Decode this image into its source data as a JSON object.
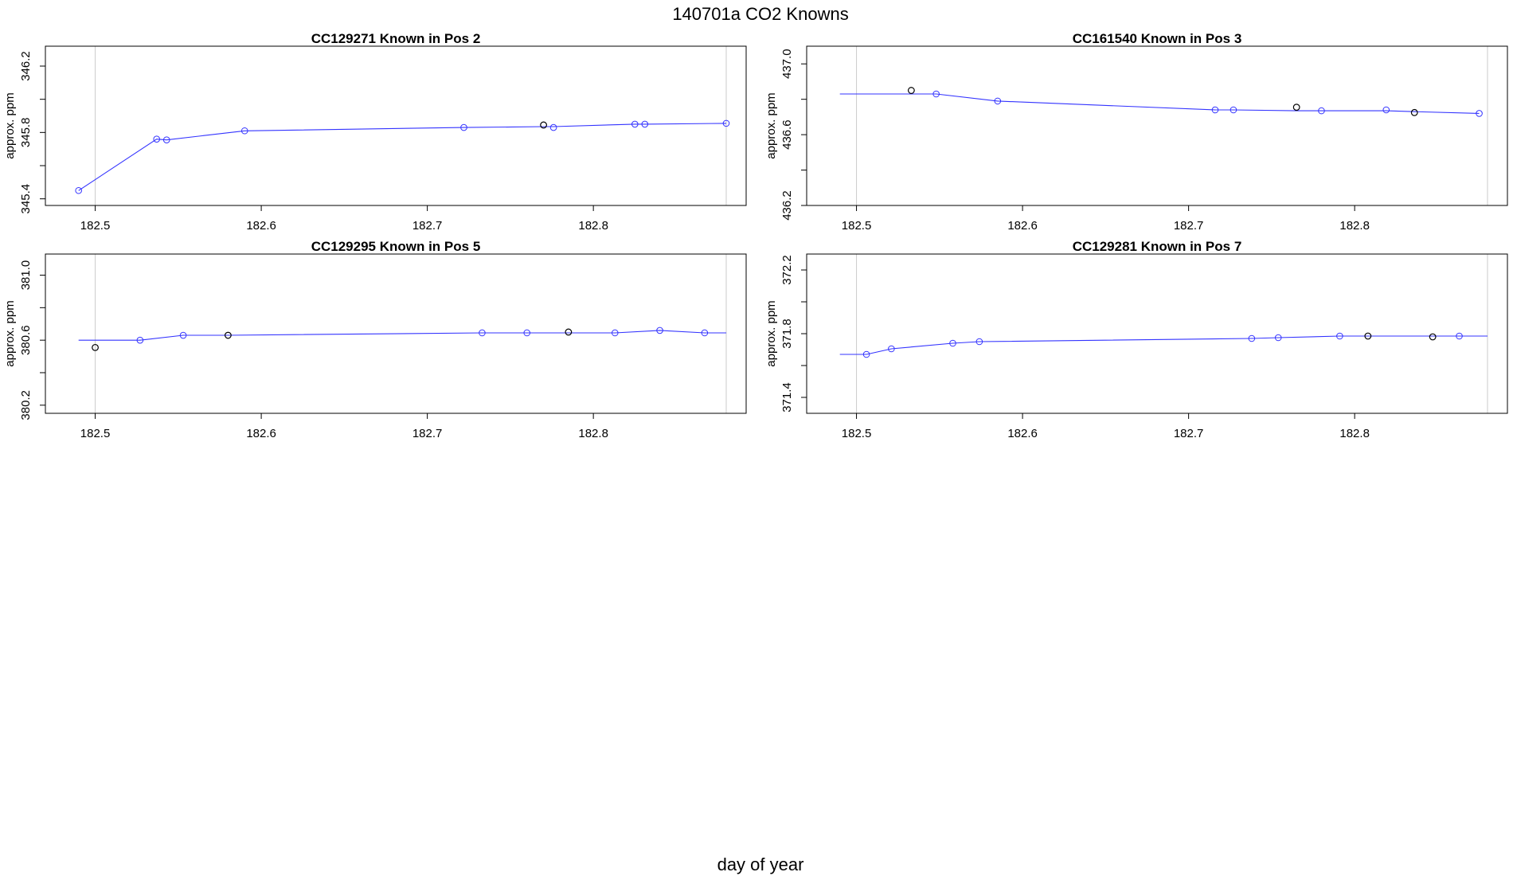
{
  "figure": {
    "title": "140701a   CO2 Knowns",
    "xlabel": "day of year"
  },
  "chart_data": [
    {
      "type": "line",
      "title": "CC129271    Known in Pos 2",
      "xlabel": "",
      "ylabel": "approx. ppm",
      "xlim": [
        182.47,
        182.892
      ],
      "ylim": [
        345.36,
        346.32
      ],
      "xticks": [
        "182.5",
        "182.6",
        "182.7",
        "182.8"
      ],
      "yticks": [
        "345.4",
        "345.8",
        "346.2"
      ],
      "vlines": [
        182.5,
        182.88
      ],
      "line": {
        "x": [
          182.49,
          182.537,
          182.543,
          182.59,
          182.722,
          182.77,
          182.776,
          182.825,
          182.831,
          182.88
        ],
        "y": [
          345.45,
          345.76,
          345.755,
          345.81,
          345.83,
          345.835,
          345.835,
          345.85,
          345.85,
          345.855
        ]
      },
      "blue_points": {
        "x": [
          182.49,
          182.537,
          182.543,
          182.59,
          182.722,
          182.776,
          182.825,
          182.831,
          182.88
        ],
        "y": [
          345.45,
          345.76,
          345.755,
          345.81,
          345.83,
          345.83,
          345.85,
          345.85,
          345.855
        ]
      },
      "black_points": {
        "x": [
          182.77
        ],
        "y": [
          345.845
        ]
      }
    },
    {
      "type": "line",
      "title": "CC161540    Known in Pos 3",
      "xlabel": "",
      "ylabel": "approx. ppm",
      "xlim": [
        182.47,
        182.892
      ],
      "ylim": [
        436.2,
        437.1
      ],
      "xticks": [
        "182.5",
        "182.6",
        "182.7",
        "182.8"
      ],
      "yticks": [
        "436.2",
        "436.6",
        "437.0"
      ],
      "vlines": [
        182.5,
        182.88
      ],
      "line": {
        "x": [
          182.49,
          182.533,
          182.548,
          182.585,
          182.716,
          182.727,
          182.765,
          182.78,
          182.819,
          182.836,
          182.875
        ],
        "y": [
          436.83,
          436.83,
          436.83,
          436.79,
          436.74,
          436.74,
          436.735,
          436.735,
          436.735,
          436.73,
          436.72
        ]
      },
      "blue_points": {
        "x": [
          182.548,
          182.585,
          182.716,
          182.727,
          182.78,
          182.819,
          182.875
        ],
        "y": [
          436.83,
          436.79,
          436.74,
          436.74,
          436.735,
          436.74,
          436.72
        ]
      },
      "black_points": {
        "x": [
          182.533,
          182.765,
          182.836
        ],
        "y": [
          436.85,
          436.755,
          436.725
        ]
      }
    },
    {
      "type": "line",
      "title": "CC129295    Known in Pos 5",
      "xlabel": "",
      "ylabel": "approx. ppm",
      "xlim": [
        182.47,
        182.892
      ],
      "ylim": [
        380.15,
        381.13
      ],
      "xticks": [
        "182.5",
        "182.6",
        "182.7",
        "182.8"
      ],
      "yticks": [
        "380.2",
        "380.6",
        "381.0"
      ],
      "vlines": [
        182.5,
        182.88
      ],
      "line": {
        "x": [
          182.49,
          182.527,
          182.553,
          182.58,
          182.733,
          182.76,
          182.785,
          182.813,
          182.84,
          182.867,
          182.88
        ],
        "y": [
          380.6,
          380.6,
          380.63,
          380.63,
          380.645,
          380.645,
          380.645,
          380.645,
          380.66,
          380.645,
          380.645
        ]
      },
      "blue_points": {
        "x": [
          182.527,
          182.553,
          182.733,
          182.76,
          182.813,
          182.84,
          182.867
        ],
        "y": [
          380.6,
          380.63,
          380.645,
          380.645,
          380.645,
          380.66,
          380.645
        ]
      },
      "black_points": {
        "x": [
          182.5,
          182.58,
          182.785
        ],
        "y": [
          380.555,
          380.63,
          380.65
        ]
      }
    },
    {
      "type": "line",
      "title": "CC129281    Known in Pos 7",
      "xlabel": "",
      "ylabel": "approx. ppm",
      "xlim": [
        182.47,
        182.892
      ],
      "ylim": [
        371.3,
        372.3
      ],
      "xticks": [
        "182.5",
        "182.6",
        "182.7",
        "182.8"
      ],
      "yticks": [
        "371.4",
        "371.8",
        "372.2"
      ],
      "vlines": [
        182.5,
        182.88
      ],
      "line": {
        "x": [
          182.49,
          182.506,
          182.521,
          182.558,
          182.574,
          182.738,
          182.754,
          182.791,
          182.808,
          182.847,
          182.863,
          182.88
        ],
        "y": [
          371.67,
          371.67,
          371.705,
          371.74,
          371.75,
          371.77,
          371.775,
          371.785,
          371.785,
          371.785,
          371.785,
          371.785
        ]
      },
      "blue_points": {
        "x": [
          182.506,
          182.521,
          182.558,
          182.574,
          182.738,
          182.754,
          182.791,
          182.863
        ],
        "y": [
          371.67,
          371.705,
          371.74,
          371.75,
          371.77,
          371.775,
          371.785,
          371.785
        ]
      },
      "black_points": {
        "x": [
          182.808,
          182.847
        ],
        "y": [
          371.785,
          371.78
        ]
      }
    }
  ],
  "colors": {
    "line": "#3333ff",
    "blue_point": "#3333ff",
    "black_point": "#000000",
    "vline": "#cccccc",
    "axis": "#000000"
  }
}
